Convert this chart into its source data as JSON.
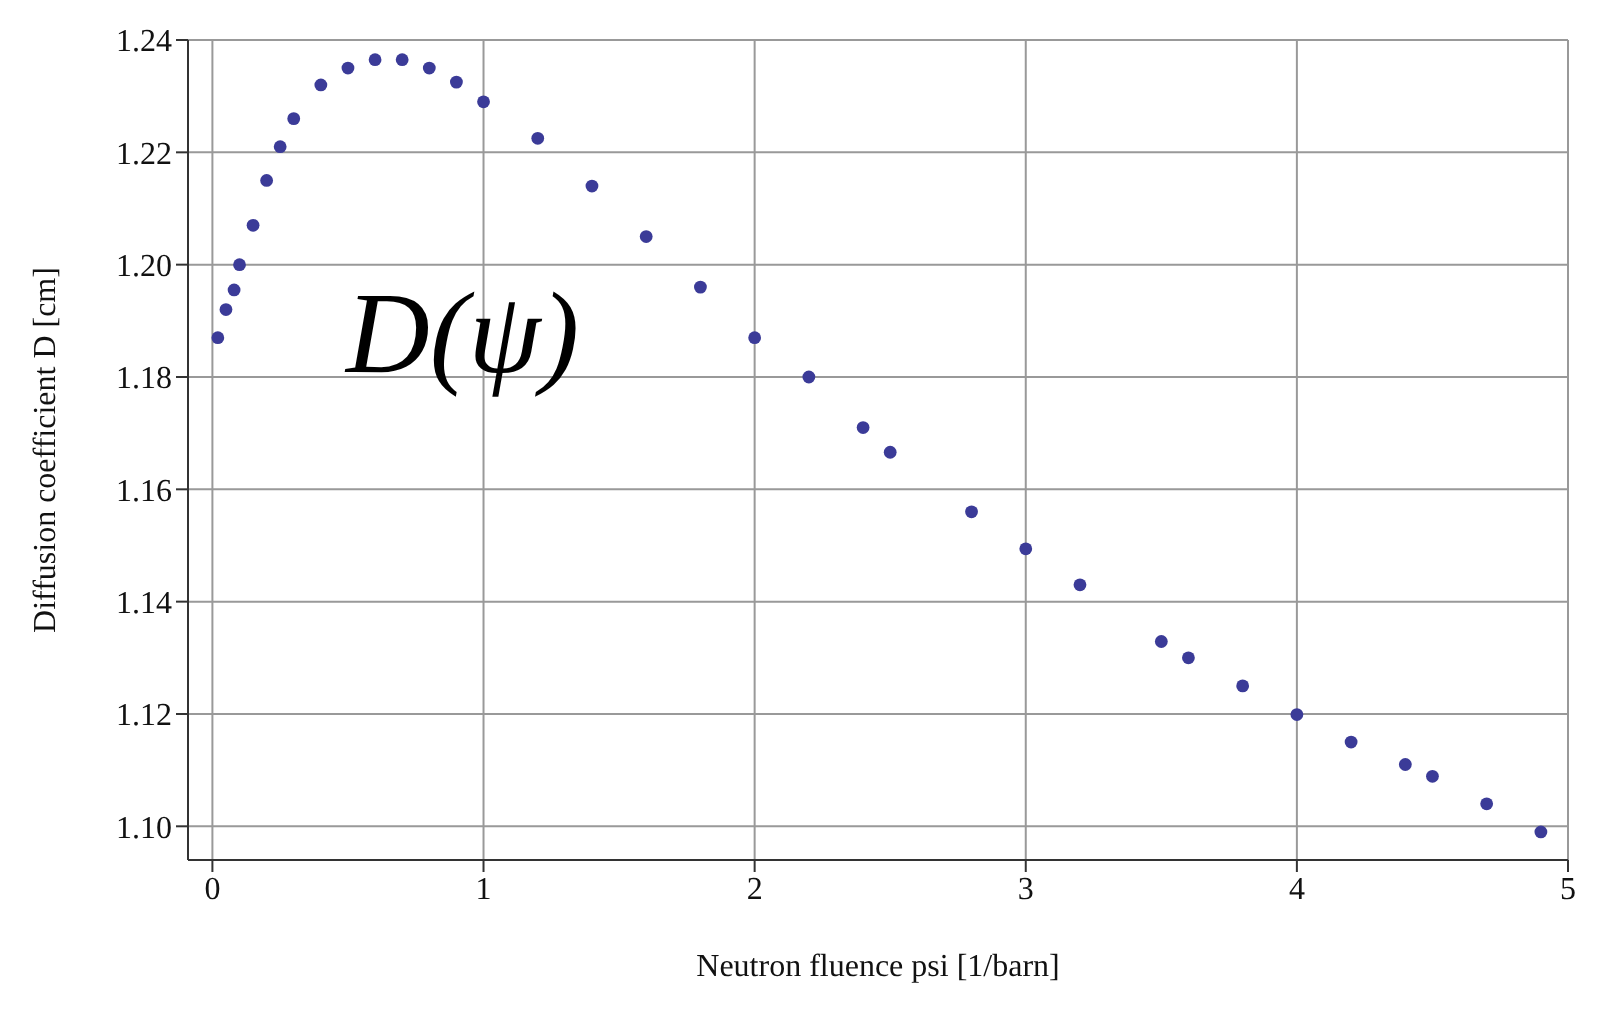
{
  "chart_data": {
    "type": "scatter",
    "xlabel": "Neutron fluence psi [1/barn]",
    "ylabel": "Diffusion coefficient D [cm]",
    "annotations": [
      "D(ψ)"
    ],
    "x": [
      0.02,
      0.05,
      0.08,
      0.1,
      0.15,
      0.2,
      0.25,
      0.3,
      0.4,
      0.5,
      0.6,
      0.7,
      0.8,
      0.9,
      1.0,
      1.2,
      1.4,
      1.6,
      1.8,
      2.0,
      2.2,
      2.4,
      2.5,
      2.8,
      3.0,
      3.2,
      3.5,
      3.6,
      3.8,
      4.0,
      4.2,
      4.4,
      4.5,
      4.7,
      4.9
    ],
    "series": [
      {
        "color": "#3b3b98",
        "values": [
          1.187,
          1.192,
          1.1955,
          1.2,
          1.207,
          1.215,
          1.221,
          1.226,
          1.232,
          1.235,
          1.2365,
          1.2365,
          1.235,
          1.2325,
          1.229,
          1.2225,
          1.214,
          1.205,
          1.196,
          1.187,
          1.18,
          1.171,
          1.1666,
          1.156,
          1.1494,
          1.143,
          1.1329,
          1.13,
          1.125,
          1.1199,
          1.115,
          1.111,
          1.1089,
          1.104,
          1.099
        ]
      }
    ],
    "xlim": [
      -0.09,
      5
    ],
    "xticks": [
      0,
      1,
      2,
      3,
      4,
      5
    ],
    "ylim": [
      1.094,
      1.24
    ],
    "yticks": [
      {
        "value": 1.1,
        "label": "1.10"
      },
      {
        "value": 1.12,
        "label": "1.12"
      },
      {
        "value": 1.14,
        "label": "1.14"
      },
      {
        "value": 1.16,
        "label": "1.16"
      },
      {
        "value": 1.18,
        "label": "1.18"
      },
      {
        "value": 1.2,
        "label": "1.20"
      },
      {
        "value": 1.22,
        "label": "1.22"
      },
      {
        "value": 1.24,
        "label": "1.24"
      }
    ],
    "grid": true,
    "marker": "circle"
  }
}
